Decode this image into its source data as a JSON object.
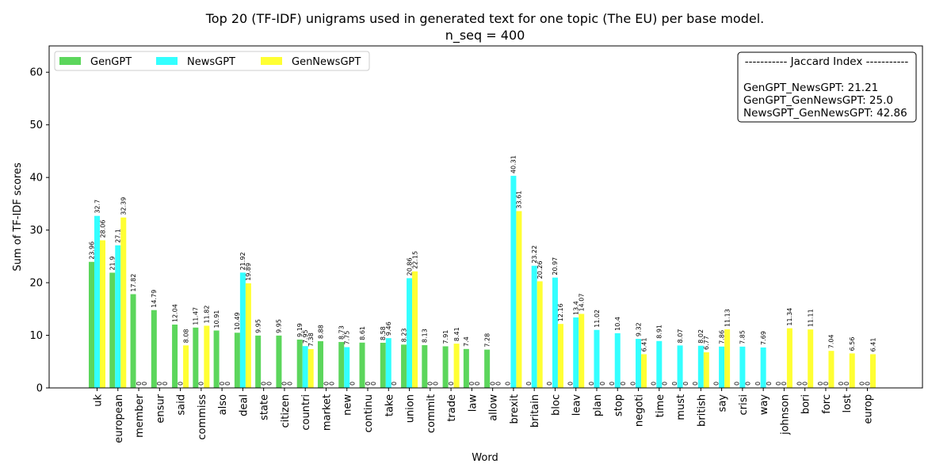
{
  "chart_data": {
    "type": "bar",
    "title_lines": [
      "Top 20 (TF-IDF) unigrams used in generated text for one topic (The EU) per base model.",
      "n_seq = 400"
    ],
    "xlabel": "Word",
    "ylabel": "Sum of TF-IDF scores",
    "ylim": [
      0,
      65
    ],
    "yticks": [
      0,
      10,
      20,
      30,
      40,
      50,
      60
    ],
    "grid": false,
    "legend": "top-left",
    "categories": [
      "uk",
      "european",
      "member",
      "ensur",
      "said",
      "commiss",
      "also",
      "deal",
      "state",
      "citizen",
      "countri",
      "market",
      "new",
      "continu",
      "take",
      "union",
      "commit",
      "trade",
      "law",
      "allow",
      "brexit",
      "britain",
      "bloc",
      "leav",
      "plan",
      "stop",
      "negoti",
      "time",
      "must",
      "british",
      "say",
      "crisi",
      "way",
      "johnson",
      "bori",
      "forc",
      "lost",
      "europ"
    ],
    "series": [
      {
        "name": "GenGPT",
        "color": "#5cd65c",
        "values": [
          23.96,
          21.9,
          17.82,
          14.79,
          12.04,
          11.47,
          10.91,
          10.49,
          9.95,
          9.95,
          9.19,
          8.88,
          8.73,
          8.61,
          8.58,
          8.23,
          8.13,
          7.91,
          7.4,
          7.28,
          0,
          0,
          0,
          0,
          0,
          0,
          0,
          0,
          0,
          0,
          0,
          0,
          0,
          0,
          0,
          0,
          0,
          0
        ]
      },
      {
        "name": "NewsGPT",
        "color": "#33ffff",
        "values": [
          32.7,
          27.1,
          0,
          0,
          0,
          0,
          0,
          21.92,
          0,
          0,
          7.95,
          0,
          7.75,
          0,
          9.46,
          20.86,
          0,
          0,
          0,
          0,
          40.31,
          23.22,
          20.97,
          13.4,
          11.02,
          10.4,
          9.32,
          8.91,
          8.07,
          8.02,
          7.86,
          7.85,
          7.69,
          0,
          0,
          0,
          0,
          0
        ]
      },
      {
        "name": "GenNewsGPT",
        "color": "#ffff33",
        "values": [
          28.06,
          32.39,
          0,
          0,
          8.08,
          11.82,
          0,
          19.89,
          0,
          0,
          7.38,
          0,
          0,
          0,
          0,
          22.15,
          0,
          8.41,
          0,
          0,
          33.61,
          20.26,
          12.16,
          14.07,
          0,
          0,
          6.41,
          0,
          0,
          6.77,
          11.13,
          0,
          0,
          11.34,
          11.11,
          7.04,
          6.56,
          6.41
        ]
      }
    ],
    "annotation": {
      "lines": [
        "----------- Jaccard Index -----------",
        "",
        "GenGPT_NewsGPT: 21.21",
        "GenGPT_GenNewsGPT: 25.0",
        "NewsGPT_GenNewsGPT: 42.86"
      ],
      "placement": "top-right"
    }
  }
}
